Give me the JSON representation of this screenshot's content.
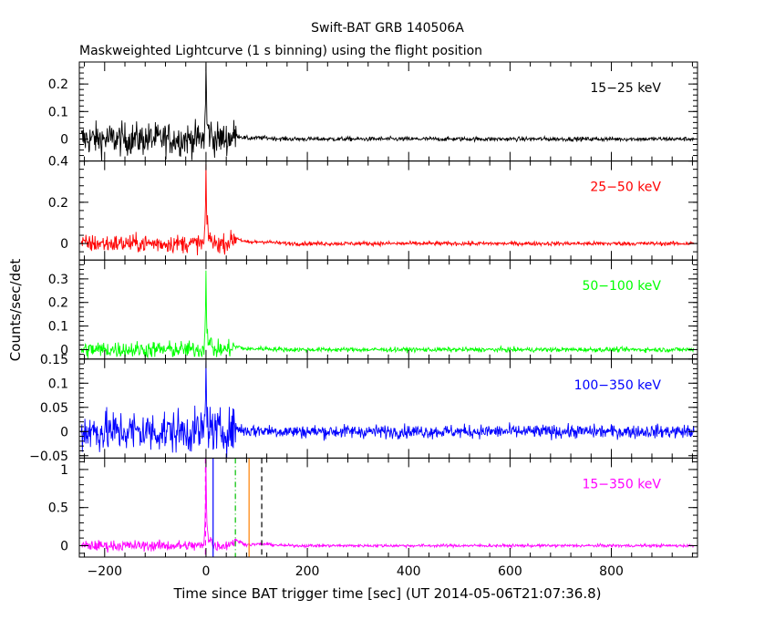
{
  "chart_data": {
    "type": "line",
    "title": "Swift-BAT GRB 140506A",
    "subtitle": "Maskweighted Lightcurve (1 s binning) using the flight position",
    "xlabel": "Time since BAT trigger time [sec] (UT 2014-05-06T21:07:36.8)",
    "ylabel": "Counts/sec/det",
    "xlim": [
      -250,
      970
    ],
    "x_ticks": [
      -200,
      0,
      200,
      400,
      600,
      800
    ],
    "x_tick_labels": [
      "−200",
      "0",
      "200",
      "400",
      "600",
      "800"
    ],
    "grid": false,
    "panels": [
      {
        "name": "15−25 keV",
        "color": "#000000",
        "ylim": [
          -0.08,
          0.28
        ],
        "y_ticks": [
          0,
          0.1,
          0.2
        ],
        "y_tick_labels": [
          "0",
          "0.1",
          "0.2"
        ],
        "noise_pre": 0.03,
        "noise_post": 0.004,
        "peak": 0.27,
        "bump": 0.012
      },
      {
        "name": "25−50 keV",
        "color": "#ff0000",
        "ylim": [
          -0.08,
          0.4
        ],
        "y_ticks": [
          0,
          0.2,
          0.4
        ],
        "y_tick_labels": [
          "0",
          "0.2",
          "0.4"
        ],
        "noise_pre": 0.022,
        "noise_post": 0.005,
        "peak": 0.37,
        "bump": 0.025
      },
      {
        "name": "50−100 keV",
        "color": "#00ff00",
        "ylim": [
          -0.04,
          0.38
        ],
        "y_ticks": [
          0,
          0.1,
          0.2,
          0.3
        ],
        "y_tick_labels": [
          "0",
          "0.1",
          "0.2",
          "0.3"
        ],
        "noise_pre": 0.018,
        "noise_post": 0.005,
        "peak": 0.36,
        "bump": 0.012
      },
      {
        "name": "100−350 keV",
        "color": "#0000ff",
        "ylim": [
          -0.055,
          0.15
        ],
        "y_ticks": [
          -0.05,
          0,
          0.05,
          0.1,
          0.15
        ],
        "y_tick_labels": [
          "−0.05",
          "0",
          "0.05",
          "0.1",
          "0.15"
        ],
        "noise_pre": 0.022,
        "noise_post": 0.007,
        "peak": 0.13,
        "bump": 0.006
      },
      {
        "name": "15−350 keV",
        "color": "#ff00ff",
        "ylim": [
          -0.15,
          1.15
        ],
        "y_ticks": [
          0,
          0.5,
          1
        ],
        "y_tick_labels": [
          "0",
          "0.5",
          "1"
        ],
        "noise_pre": 0.035,
        "noise_post": 0.01,
        "peak": 1.15,
        "bump": 0.06
      }
    ],
    "x_start": -246,
    "x_end": 963,
    "time_markers": [
      {
        "x": -1,
        "color": "#ff00ff",
        "style": "dashed"
      },
      {
        "x": 14,
        "color": "#0000ff",
        "style": "solid"
      },
      {
        "x": 58,
        "color": "#00c000",
        "style": "dashdot"
      },
      {
        "x": 85,
        "color": "#ff8000",
        "style": "solid"
      },
      {
        "x": 110,
        "color": "#000000",
        "style": "dashed"
      }
    ]
  }
}
